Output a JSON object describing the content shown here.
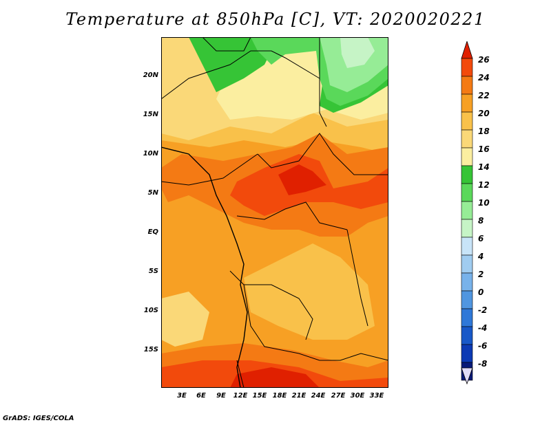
{
  "title": "Temperature at 850hPa [C], VT: 2020020221",
  "footer": "GrADS: IGES/COLA",
  "y_axis": {
    "ticks": [
      {
        "label": "20N"
      },
      {
        "label": "15N"
      },
      {
        "label": "10N"
      },
      {
        "label": "5N"
      },
      {
        "label": "EQ"
      },
      {
        "label": "5S"
      },
      {
        "label": "10S"
      },
      {
        "label": "15S"
      }
    ]
  },
  "x_axis": {
    "ticks": [
      {
        "label": "3E"
      },
      {
        "label": "6E"
      },
      {
        "label": "9E"
      },
      {
        "label": "12E"
      },
      {
        "label": "15E"
      },
      {
        "label": "18E"
      },
      {
        "label": "21E"
      },
      {
        "label": "24E"
      },
      {
        "label": "27E"
      },
      {
        "label": "30E"
      },
      {
        "label": "33E"
      }
    ]
  },
  "colorbar": {
    "levels": [
      {
        "label": "26",
        "color": "#e02000"
      },
      {
        "label": "24",
        "color": "#f24a0c"
      },
      {
        "label": "22",
        "color": "#f47a14"
      },
      {
        "label": "20",
        "color": "#f7a024"
      },
      {
        "label": "18",
        "color": "#f9c14a"
      },
      {
        "label": "16",
        "color": "#fad878"
      },
      {
        "label": "14",
        "color": "#fbeea0"
      },
      {
        "label": "12",
        "color": "#36c436"
      },
      {
        "label": "10",
        "color": "#5ad85a"
      },
      {
        "label": "8",
        "color": "#96ec96"
      },
      {
        "label": "6",
        "color": "#c6f4c6"
      },
      {
        "label": "4",
        "color": "#c8e4f8"
      },
      {
        "label": "2",
        "color": "#a0ccf0"
      },
      {
        "label": "0",
        "color": "#78b2ea"
      },
      {
        "label": "-2",
        "color": "#5096e0"
      },
      {
        "label": "-4",
        "color": "#2f78d8"
      },
      {
        "label": "-6",
        "color": "#1858c8"
      },
      {
        "label": "-8",
        "color": "#0c3ab4"
      }
    ],
    "top_color": "#e02000",
    "bottom_color": "#e0dcf8",
    "lowest_color": "#081a78"
  },
  "map_colors": {
    "c14": "#fbeea0",
    "c16": "#fad878",
    "c18": "#f9c14a",
    "c20": "#f7a024",
    "c22": "#f47a14",
    "c24": "#f24a0c",
    "c26": "#e02000",
    "c12": "#36c436",
    "c10": "#5ad85a",
    "c8": "#96ec96",
    "c6": "#c6f4c6"
  }
}
